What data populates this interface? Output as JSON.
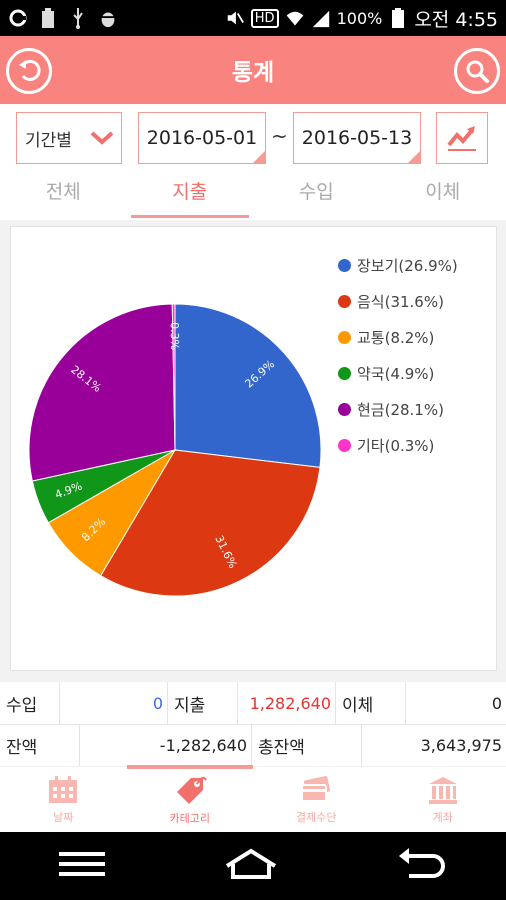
{
  "status": {
    "battery": "100%",
    "time": "오전 4:55",
    "hd_label": "HD"
  },
  "appbar": {
    "title": "통계"
  },
  "filters": {
    "period_label": "기간별",
    "date_from": "2016-05-01",
    "date_to": "2016-05-13",
    "separator": "~"
  },
  "tabs": [
    {
      "label": "전체"
    },
    {
      "label": "지출"
    },
    {
      "label": "수입"
    },
    {
      "label": "이체"
    }
  ],
  "colors": {
    "accent": "#f9837f",
    "accent_border": "#f59b95"
  },
  "chart_data": {
    "type": "pie",
    "title": "",
    "legend_position": "right",
    "slices": [
      {
        "label": "장보기",
        "value": 26.9,
        "legend": "장보기(26.9%)",
        "data_label": "26.9%",
        "color": "#3366cc"
      },
      {
        "label": "음식",
        "value": 31.6,
        "legend": "음식(31.6%)",
        "data_label": "31.6%",
        "color": "#dc3912"
      },
      {
        "label": "교통",
        "value": 8.2,
        "legend": "교통(8.2%)",
        "data_label": "8.2%",
        "color": "#ff9900"
      },
      {
        "label": "약국",
        "value": 4.9,
        "legend": "약국(4.9%)",
        "data_label": "4.9%",
        "color": "#109618"
      },
      {
        "label": "현금",
        "value": 28.1,
        "legend": "현금(28.1%)",
        "data_label": "28.1%",
        "color": "#990099"
      },
      {
        "label": "기타",
        "value": 0.3,
        "legend": "기타(0.3%)",
        "data_label": "0.3%",
        "color": "#ff33cc"
      }
    ]
  },
  "summary": {
    "income_label": "수입",
    "income_value": "0",
    "expense_label": "지출",
    "expense_value": "1,282,640",
    "transfer_label": "이체",
    "transfer_value": "0",
    "balance_label": "잔액",
    "balance_value": "-1,282,640",
    "total_balance_label": "총잔액",
    "total_balance_value": "3,643,975"
  },
  "bottom_nav": [
    {
      "label": "날짜",
      "icon": "calendar-icon"
    },
    {
      "label": "카테고리",
      "icon": "tag-icon"
    },
    {
      "label": "결제수단",
      "icon": "card-icon"
    },
    {
      "label": "계좌",
      "icon": "bank-icon"
    }
  ]
}
